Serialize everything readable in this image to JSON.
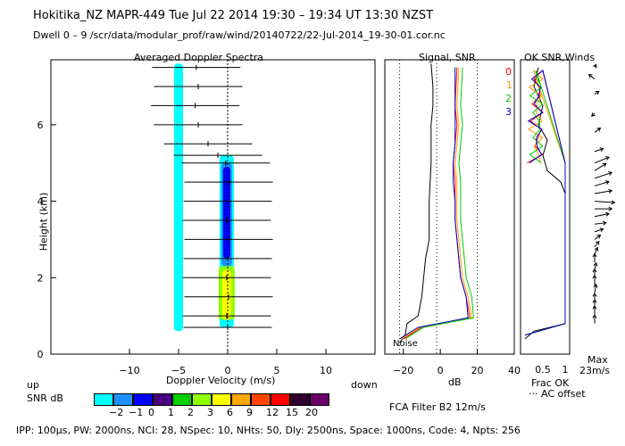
{
  "header": {
    "line1": "Hokitika_NZ   MAPR-449   Tue Jul 22 2014 19:30 – 19:34 UT 13:30 NZST",
    "line2": "Dwell   0  –   9    /scr/data/modular_prof/raw/wind/20140722/22-Jul-2014_19-30-01.cor.nc"
  },
  "footer": "IPP: 100μs,  PW: 2000ns,  NCI:  28,  NSpec: 10, NHts: 50,  Dly: 2500ns,  Space: 1000ns,  Code: 4,  Npts: 256",
  "colorbar": {
    "label": "SNR dB",
    "ticks": [
      "−2",
      "−1",
      "0",
      "1",
      "2",
      "3",
      "6",
      "9",
      "12",
      "15",
      "20"
    ],
    "colors": [
      "#00ffff",
      "#1e90ff",
      "#0000ff",
      "#4b0082",
      "#00d000",
      "#90ff00",
      "#ffff00",
      "#ffa500",
      "#ff4500",
      "#ff0000",
      "#300030",
      "#6a006a"
    ]
  },
  "chart_data": [
    {
      "type": "heatmap",
      "title": "Averaged Doppler Spectra",
      "xlabel": "Doppler Velocity (m/s)",
      "ylabel": "Height (km)",
      "xlim": [
        -18,
        15
      ],
      "ylim": [
        0,
        7.7
      ],
      "xticks": [
        -10,
        -5,
        0,
        5,
        10
      ],
      "yticks": [
        0,
        2,
        4,
        6
      ],
      "corner_labels": {
        "left": "up",
        "right": "down"
      },
      "zero_line": 0,
      "spectrum_cells": [
        {
          "v": -5,
          "h0": 0.6,
          "h1": 7.6,
          "level": 0
        },
        {
          "v": -0.1,
          "h0": 0.7,
          "h1": 5.2,
          "level": 0
        },
        {
          "v": -0.1,
          "h0": 2.3,
          "h1": 5.0,
          "level": 1
        },
        {
          "v": -0.1,
          "h0": 2.5,
          "h1": 4.9,
          "level": 2
        },
        {
          "v": -0.1,
          "h0": 0.9,
          "h1": 2.3,
          "level": 5
        },
        {
          "v": -0.1,
          "h0": 0.9,
          "h1": 2.2,
          "level": 6
        }
      ],
      "mean_velocity_km_profile": {
        "heights": [
          0.7,
          1.0,
          1.5,
          2.0,
          2.5,
          3.0,
          3.5,
          4.0,
          4.5,
          5.0,
          5.2,
          5.5,
          6.0,
          6.5,
          7.0,
          7.5
        ],
        "velocity": [
          0.0,
          -0.1,
          0.1,
          -0.1,
          0.0,
          0.1,
          -0.1,
          0.0,
          0.1,
          -0.2,
          -1.0,
          -2.0,
          -3.0,
          -3.3,
          -3.0,
          -3.2
        ]
      }
    },
    {
      "type": "line",
      "title": "Signal, SNR",
      "xlabel": "dB",
      "xlim": [
        -30,
        40
      ],
      "ylim": [
        0,
        7.7
      ],
      "xticks": [
        -20,
        0,
        20,
        40
      ],
      "annotations": [
        "Noise"
      ],
      "series": [
        {
          "name": "signal",
          "color": "#000000",
          "x": [
            -22,
            -19,
            -18,
            -12,
            -10,
            -9,
            -8,
            -6,
            -6,
            -5,
            -5,
            -5,
            -4,
            -4,
            -5
          ],
          "y": [
            0.3,
            0.5,
            0.8,
            1.0,
            1.5,
            2.0,
            2.5,
            3.0,
            4.0,
            5.0,
            5.5,
            6.0,
            6.5,
            7.0,
            7.6
          ]
        },
        {
          "name": "0",
          "color": "#ff0000",
          "x": [
            -20,
            -10,
            16,
            14,
            11,
            10,
            9,
            8,
            8,
            8,
            7,
            8,
            9,
            8,
            9
          ],
          "y": [
            0.4,
            0.7,
            0.95,
            1.5,
            2.0,
            2.5,
            3.0,
            3.5,
            4.0,
            4.5,
            5.0,
            5.5,
            6.0,
            6.5,
            7.5
          ]
        },
        {
          "name": "1",
          "color": "#ff9900",
          "x": [
            -21,
            -11,
            17,
            15,
            12,
            11,
            10,
            9,
            9,
            9,
            8,
            9,
            10,
            9,
            10
          ],
          "y": [
            0.4,
            0.7,
            0.95,
            1.5,
            2.0,
            2.5,
            3.0,
            3.5,
            4.0,
            4.5,
            5.0,
            5.5,
            6.0,
            6.5,
            7.5
          ]
        },
        {
          "name": "2",
          "color": "#00cc00",
          "x": [
            -19,
            -9,
            18,
            17,
            14,
            13,
            12,
            11,
            11,
            11,
            10,
            11,
            12,
            11,
            12
          ],
          "y": [
            0.4,
            0.7,
            0.95,
            1.5,
            2.0,
            2.5,
            3.0,
            3.5,
            4.0,
            4.5,
            5.0,
            5.5,
            6.0,
            6.5,
            7.5
          ]
        },
        {
          "name": "3",
          "color": "#0000cc",
          "x": [
            -22,
            -12,
            15,
            14,
            11,
            10,
            9,
            8,
            8,
            7,
            7,
            8,
            8,
            8,
            8
          ],
          "y": [
            0.4,
            0.7,
            0.95,
            1.5,
            2.0,
            2.5,
            3.0,
            3.5,
            4.0,
            4.5,
            5.0,
            5.5,
            6.0,
            6.5,
            7.5
          ]
        }
      ],
      "noise_levels_db": [
        -22,
        -2
      ]
    },
    {
      "type": "line",
      "title": "OK SNR,Winds",
      "xlabel": "Frac OK",
      "xticks": [
        "0.5",
        "1"
      ],
      "xlim": [
        0,
        1.1
      ],
      "ylim": [
        0,
        7.7
      ],
      "legend": [
        "0",
        "1",
        "2",
        "3"
      ],
      "legend_colors": [
        "#ff0000",
        "#ff9900",
        "#00cc00",
        "#0000cc"
      ],
      "extra_labels": [
        "··· AC offset"
      ],
      "series": [
        {
          "name": "frac_ok",
          "color": "#000000",
          "x": [
            0.1,
            0.3,
            1.0,
            1.0,
            1.0,
            1.0,
            1.0,
            1.0,
            0.9,
            0.6,
            0.5,
            0.6,
            0.4,
            0.5,
            0.3,
            0.4
          ],
          "y": [
            0.4,
            0.6,
            0.8,
            2.0,
            3.0,
            3.8,
            4.0,
            4.2,
            4.5,
            4.8,
            5.2,
            5.6,
            6.0,
            6.5,
            7.0,
            7.5
          ]
        }
      ]
    },
    {
      "type": "scatter",
      "title": "Winds",
      "xlabel": "Max",
      "scale_label": "23m/s",
      "ylim": [
        0,
        7.7
      ],
      "wind_vectors": {
        "heights": [
          0.8,
          1.0,
          1.2,
          1.4,
          1.6,
          1.8,
          2.0,
          2.2,
          2.4,
          2.6,
          2.8,
          3.0,
          3.2,
          3.4,
          3.6,
          3.8,
          4.0,
          4.2,
          4.4,
          4.6,
          4.8,
          5.0,
          5.3,
          5.8,
          6.3,
          6.8,
          7.2,
          7.5
        ],
        "u_ms": [
          0,
          0,
          0,
          0,
          1,
          0,
          0,
          1,
          0,
          2,
          3,
          4,
          6,
          8,
          10,
          12,
          14,
          12,
          10,
          12,
          8,
          10,
          6,
          4,
          -2,
          3,
          -4,
          1
        ],
        "v_ms": [
          6,
          7,
          6,
          5,
          6,
          7,
          6,
          5,
          6,
          5,
          4,
          3,
          2,
          1,
          2,
          0,
          -1,
          2,
          3,
          4,
          5,
          4,
          2,
          3,
          -2,
          2,
          3,
          2
        ]
      }
    }
  ]
}
